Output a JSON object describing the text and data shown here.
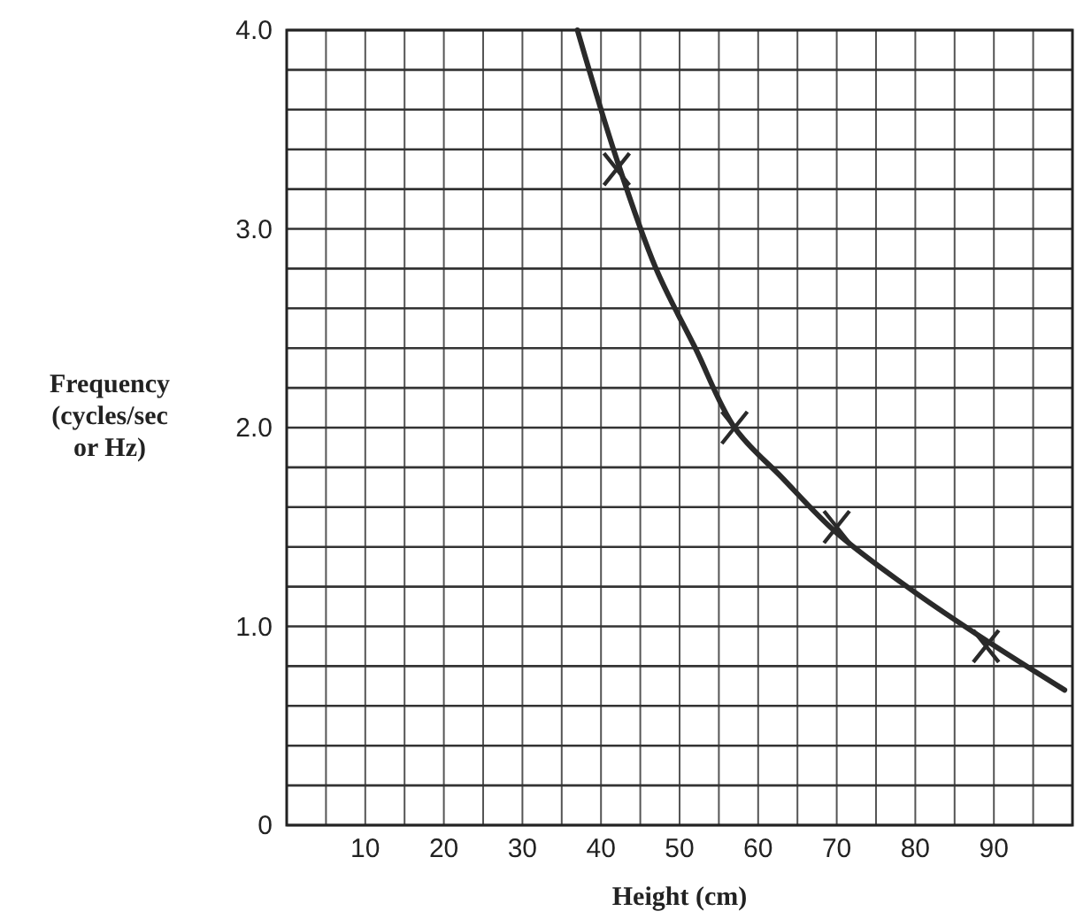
{
  "chart_data": {
    "type": "line",
    "xlabel": "Height (cm)",
    "ylabel": "Frequency\n(cycles/sec\nor Hz)",
    "series": [
      {
        "color": "#2a2a2a",
        "marker": "none",
        "x": [
          37,
          42,
          47,
          52,
          57,
          63,
          70,
          80,
          89,
          99
        ],
        "values": [
          4.0,
          3.35,
          2.8,
          2.4,
          2.0,
          1.75,
          1.47,
          1.17,
          0.93,
          0.68
        ]
      },
      {
        "type": "scatter",
        "color": "#2a2a2a",
        "marker": "cross",
        "x": [
          42,
          57,
          70,
          89
        ],
        "values": [
          3.3,
          2.0,
          1.5,
          0.9
        ]
      }
    ],
    "xlim": [
      0,
      100
    ],
    "ylim": [
      0,
      4
    ],
    "xticks": [
      {
        "value": 0,
        "label": null
      },
      {
        "value": 5,
        "label": null
      },
      10,
      {
        "value": 15,
        "label": null
      },
      20,
      {
        "value": 25,
        "label": null
      },
      30,
      {
        "value": 35,
        "label": null
      },
      40,
      {
        "value": 45,
        "label": null
      },
      50,
      {
        "value": 55,
        "label": null
      },
      60,
      {
        "value": 65,
        "label": null
      },
      70,
      {
        "value": 75,
        "label": null
      },
      80,
      {
        "value": 85,
        "label": null
      },
      90,
      {
        "value": 95,
        "label": null
      },
      {
        "value": 100,
        "label": null
      }
    ],
    "yticks": [
      0,
      {
        "value": 0.2,
        "label": null
      },
      {
        "value": 0.4,
        "label": null
      },
      {
        "value": 0.6,
        "label": null
      },
      {
        "value": 0.8,
        "label": null
      },
      {
        "value": 1,
        "label": "1.0"
      },
      {
        "value": 1.2,
        "label": null
      },
      {
        "value": 1.4,
        "label": null
      },
      {
        "value": 1.6,
        "label": null
      },
      {
        "value": 1.8,
        "label": null
      },
      {
        "value": 2,
        "label": "2.0"
      },
      {
        "value": 2.2,
        "label": null
      },
      {
        "value": 2.4,
        "label": null
      },
      {
        "value": 2.6,
        "label": null
      },
      {
        "value": 2.8,
        "label": null
      },
      {
        "value": 3,
        "label": "3.0"
      },
      {
        "value": 3.2,
        "label": null
      },
      {
        "value": 3.4,
        "label": null
      },
      {
        "value": 3.6,
        "label": null
      },
      {
        "value": 3.8,
        "label": null
      },
      {
        "value": 4,
        "label": "4.0"
      }
    ],
    "grid": true
  }
}
